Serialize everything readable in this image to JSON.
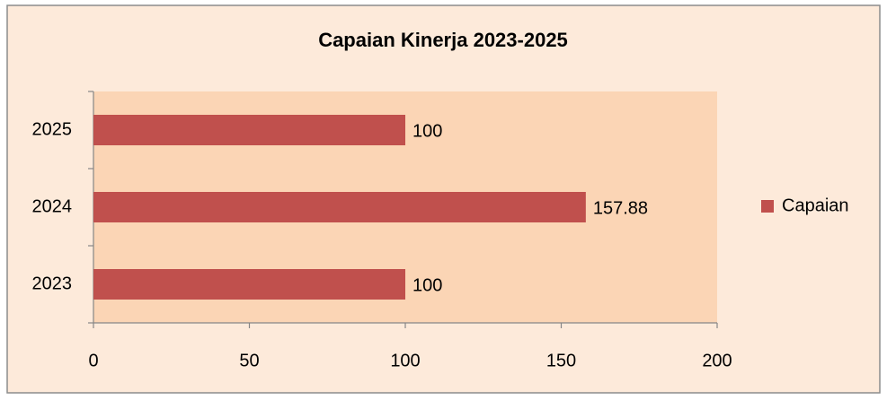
{
  "chart_data": {
    "type": "hbar",
    "title": "Capaian Kinerja 2023-2025",
    "categories": [
      "2023",
      "2024",
      "2025"
    ],
    "series": [
      {
        "name": "Capaian",
        "color": "#c0504d",
        "values": [
          100,
          157.88,
          100
        ]
      }
    ],
    "xlim": [
      0,
      200
    ],
    "xticks": [
      0,
      50,
      100,
      150,
      200
    ],
    "legend": "right",
    "plot_background": "#fbd5b5",
    "chart_background": "#fdeada"
  }
}
